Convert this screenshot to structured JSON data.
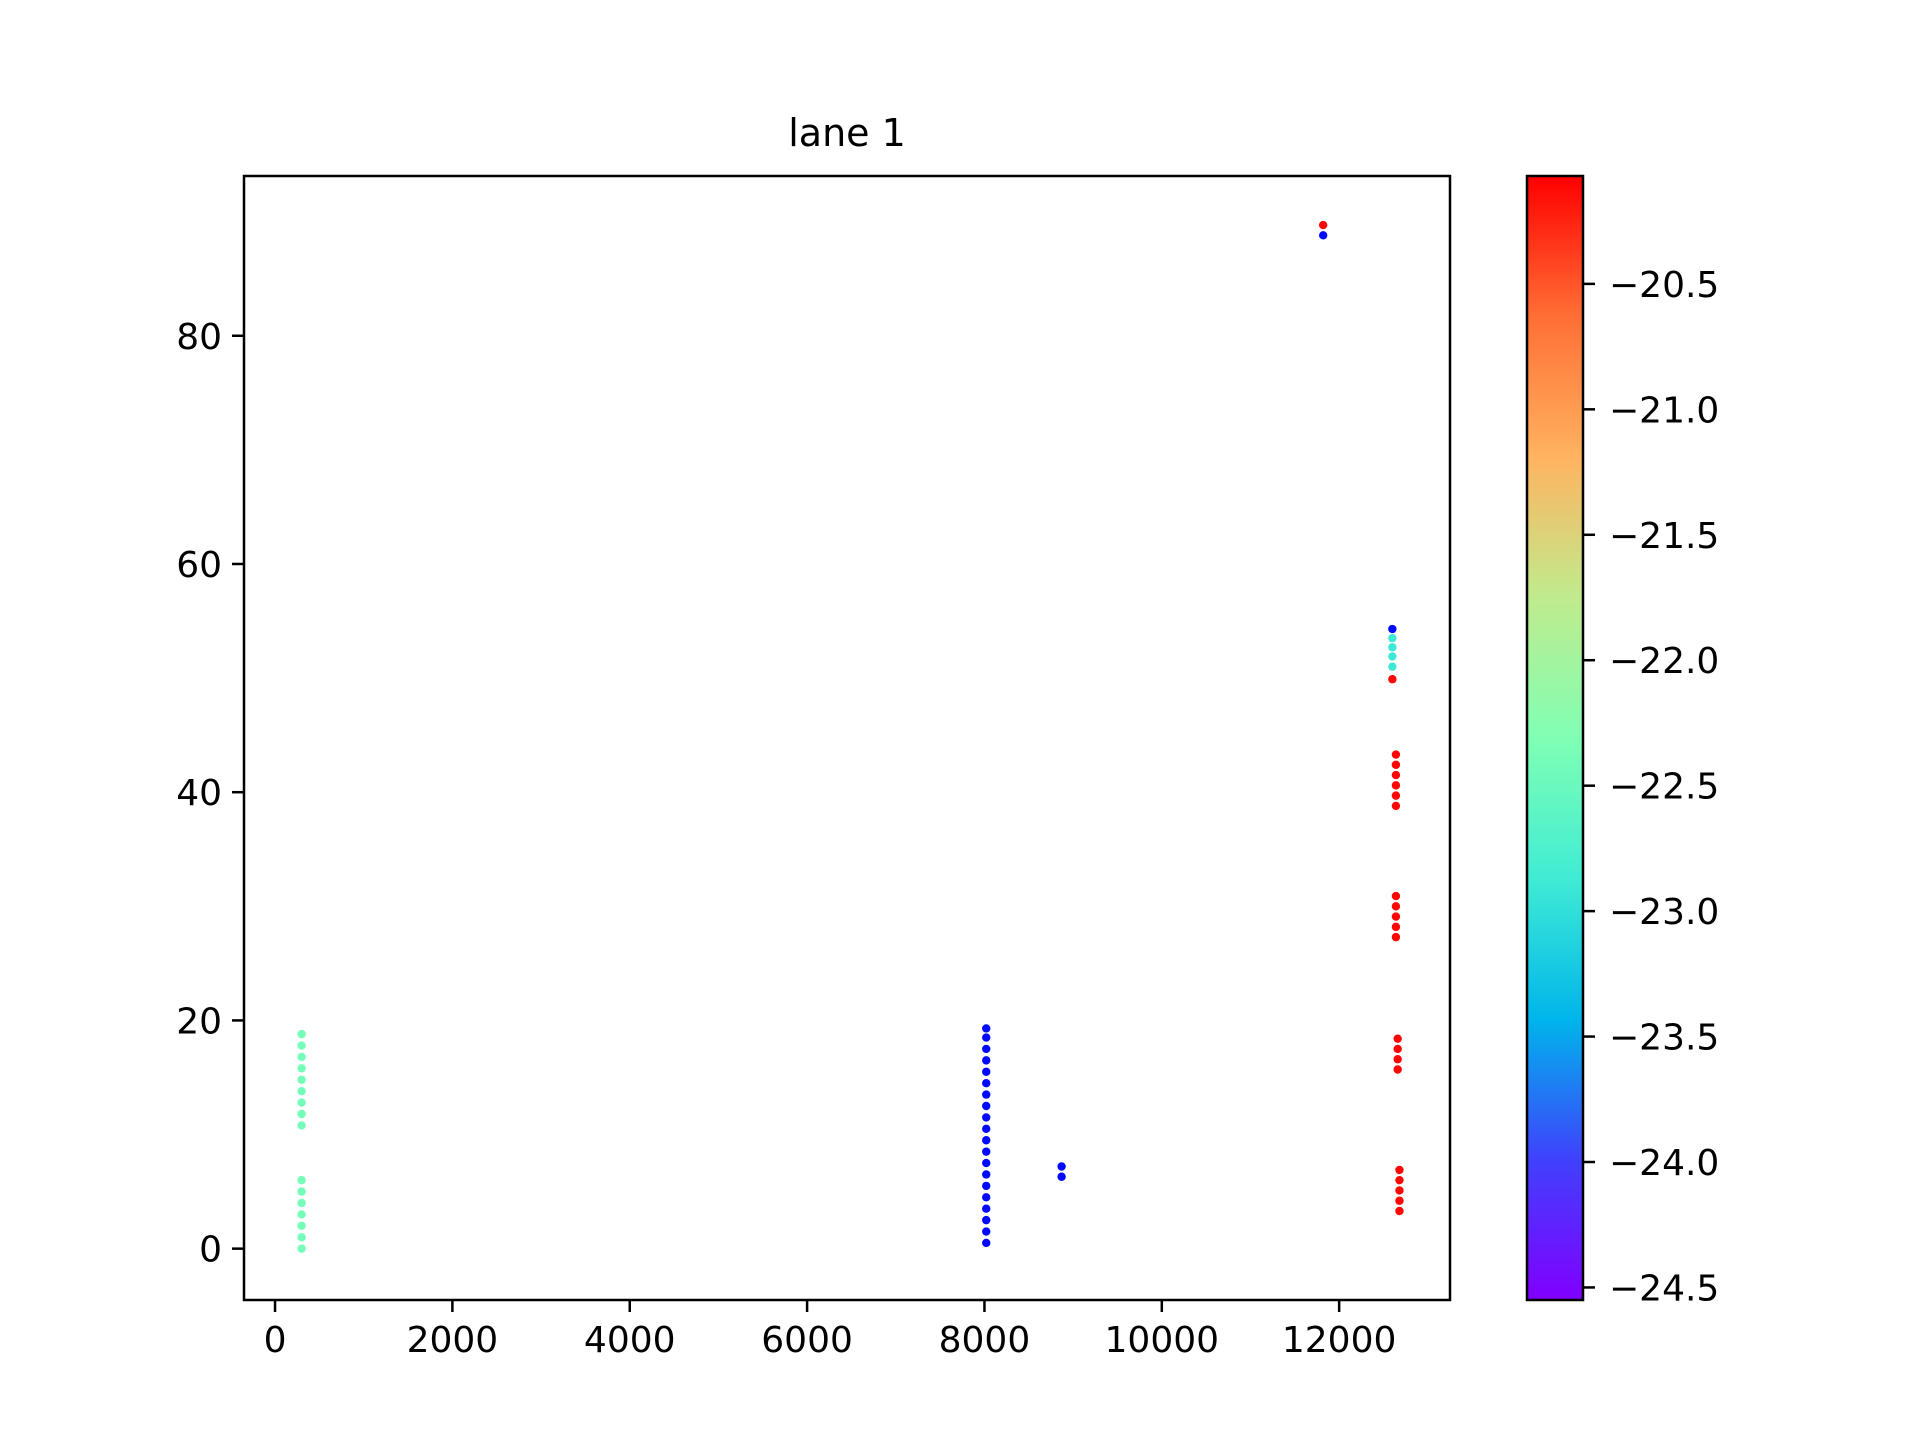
{
  "chart_data": {
    "type": "scatter",
    "title": "lane 1",
    "xlabel": "",
    "ylabel": "",
    "xlim": [
      -350,
      13250
    ],
    "ylim": [
      -4.5,
      94
    ],
    "xticks": [
      0,
      2000,
      4000,
      6000,
      8000,
      10000,
      12000
    ],
    "xtick_labels": [
      "0",
      "2000",
      "4000",
      "6000",
      "8000",
      "10000",
      "12000"
    ],
    "yticks": [
      0,
      20,
      40,
      60,
      80
    ],
    "ytick_labels": [
      "0",
      "20",
      "40",
      "60",
      "80"
    ],
    "grid": false,
    "colormap": "rainbow",
    "colorbar": {
      "min": -24.55,
      "max": -20.07,
      "ticks": [
        -20.5,
        -21.0,
        -21.5,
        -22.0,
        -22.5,
        -23.0,
        -23.5,
        -24.0,
        -24.5
      ],
      "tick_labels": [
        "−20.5",
        "−21.0",
        "−21.5",
        "−22.0",
        "−22.5",
        "−23.0",
        "−23.5",
        "−24.0",
        "−24.5"
      ]
    },
    "groups": [
      {
        "x": 300,
        "y": [
          0,
          1,
          2,
          3,
          4,
          5,
          6
        ],
        "c": -22.4
      },
      {
        "x": 300,
        "y": [
          10.8,
          11.8,
          12.8,
          13.8,
          14.8,
          15.8,
          16.8,
          17.8,
          18.8
        ],
        "c": -22.4
      },
      {
        "x": 8020,
        "y": [
          0.5,
          1.5,
          2.5,
          3.5,
          4.5,
          5.5,
          6.5,
          7.5,
          8.5,
          9.5,
          10.5,
          11.5,
          12.5,
          13.5,
          14.5,
          15.5,
          16.5,
          17.5,
          18.5,
          19.3
        ],
        "c": -24.5
      },
      {
        "x": 8870,
        "y": [
          6.3,
          7.2
        ],
        "c": -24.5
      },
      {
        "x": 11820,
        "y": [
          88.8
        ],
        "c": -24.5
      },
      {
        "x": 11820,
        "y": [
          89.7
        ],
        "c": -20.1
      },
      {
        "x": 12600,
        "y": [
          54.3
        ],
        "c": -24.5
      },
      {
        "x": 12600,
        "y": [
          51.0,
          51.9,
          52.7,
          53.5
        ],
        "c": -22.9
      },
      {
        "x": 12600,
        "y": [
          49.9
        ],
        "c": -20.1
      },
      {
        "x": 12640,
        "y": [
          38.8,
          39.7,
          40.6,
          41.5,
          42.4,
          43.3
        ],
        "c": -20.1
      },
      {
        "x": 12640,
        "y": [
          27.3,
          28.2,
          29.1,
          30.0,
          30.9
        ],
        "c": -20.1
      },
      {
        "x": 12660,
        "y": [
          15.7,
          16.6,
          17.5,
          18.4
        ],
        "c": -20.1
      },
      {
        "x": 12680,
        "y": [
          3.3,
          4.2,
          5.1,
          6.0,
          6.9
        ],
        "c": -20.1
      }
    ]
  }
}
